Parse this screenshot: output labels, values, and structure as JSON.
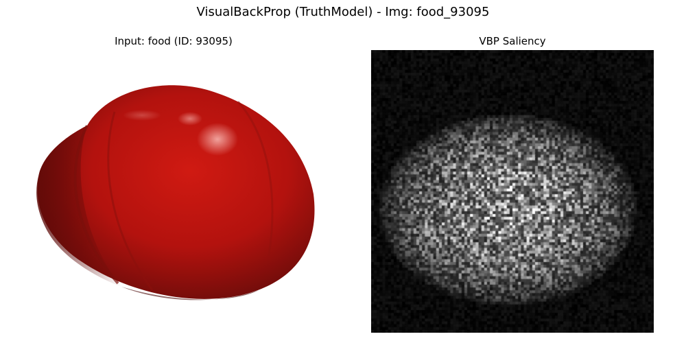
{
  "figure": {
    "suptitle": "VisualBackProp (TruthModel) - Img: food_93095"
  },
  "panels": [
    {
      "title": "Input: food (ID: 93095)",
      "content": "photo of a red tomato on white background",
      "colors": {
        "background": "#ffffff",
        "fruit_base": "#b3120e",
        "fruit_dark": "#5e0a08",
        "highlight": "#f3a9a3"
      }
    },
    {
      "title": "VBP Saliency",
      "colormap": "gray",
      "colors": {
        "background": "#000000",
        "highlight": "#ffffff"
      }
    }
  ]
}
